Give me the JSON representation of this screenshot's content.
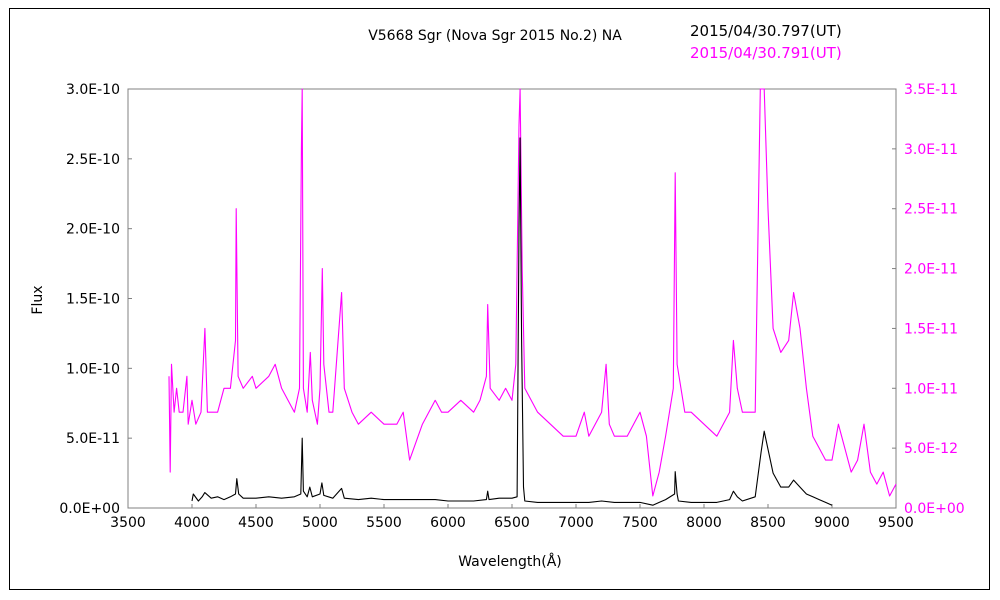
{
  "chart_data": {
    "type": "line",
    "title": "V5668 Sgr (Nova Sgr 2015 No.2)    NA",
    "xlabel": "Wavelength(Å)",
    "ylabel": "Flux",
    "xlim": [
      3500,
      9500
    ],
    "ylim_left": [
      0,
      3e-10
    ],
    "ylim_right": [
      0,
      3.5e-11
    ],
    "x_ticks": [
      "3500",
      "4000",
      "4500",
      "5000",
      "5500",
      "6000",
      "6500",
      "7000",
      "7500",
      "8000",
      "8500",
      "9000",
      "9500"
    ],
    "y_ticks_left": [
      "0.0E+00",
      "5.0E-11",
      "1.0E-10",
      "1.5E-10",
      "2.0E-10",
      "2.5E-10",
      "3.0E-10"
    ],
    "y_ticks_right": [
      "0.0E+00",
      "5.0E-12",
      "1.0E-11",
      "1.5E-11",
      "2.0E-11",
      "2.5E-11",
      "3.0E-11",
      "3.5E-11"
    ],
    "grid": false,
    "legend_position": "top-right",
    "series": [
      {
        "name": "2015/04/30.797(UT)",
        "axis": "left",
        "color": "#000000",
        "points": [
          [
            4000,
            5e-12
          ],
          [
            4010,
            1e-11
          ],
          [
            4050,
            5e-12
          ],
          [
            4080,
            8e-12
          ],
          [
            4100,
            1.1e-11
          ],
          [
            4150,
            7e-12
          ],
          [
            4200,
            8e-12
          ],
          [
            4250,
            6e-12
          ],
          [
            4300,
            8e-12
          ],
          [
            4340,
            1e-11
          ],
          [
            4350,
            2.1e-11
          ],
          [
            4365,
            1e-11
          ],
          [
            4400,
            7e-12
          ],
          [
            4500,
            7e-12
          ],
          [
            4600,
            8e-12
          ],
          [
            4700,
            7e-12
          ],
          [
            4800,
            8e-12
          ],
          [
            4850,
            1e-11
          ],
          [
            4861,
            5e-11
          ],
          [
            4870,
            1.2e-11
          ],
          [
            4900,
            8e-12
          ],
          [
            4920,
            1.5e-11
          ],
          [
            4940,
            8e-12
          ],
          [
            5000,
            1e-11
          ],
          [
            5015,
            1.8e-11
          ],
          [
            5030,
            9e-12
          ],
          [
            5100,
            7e-12
          ],
          [
            5169,
            1.4e-11
          ],
          [
            5190,
            7e-12
          ],
          [
            5300,
            6e-12
          ],
          [
            5400,
            7e-12
          ],
          [
            5500,
            6e-12
          ],
          [
            5600,
            6e-12
          ],
          [
            5700,
            6e-12
          ],
          [
            5800,
            6e-12
          ],
          [
            5900,
            6e-12
          ],
          [
            6000,
            5e-12
          ],
          [
            6100,
            5e-12
          ],
          [
            6200,
            5e-12
          ],
          [
            6300,
            6e-12
          ],
          [
            6310,
            1.2e-11
          ],
          [
            6320,
            6e-12
          ],
          [
            6400,
            7e-12
          ],
          [
            6500,
            7e-12
          ],
          [
            6540,
            8e-12
          ],
          [
            6555,
            2e-10
          ],
          [
            6563,
            2.65e-10
          ],
          [
            6575,
            1.2e-10
          ],
          [
            6590,
            1.5e-11
          ],
          [
            6600,
            5e-12
          ],
          [
            6700,
            4e-12
          ],
          [
            6800,
            4e-12
          ],
          [
            6900,
            4e-12
          ],
          [
            7000,
            4e-12
          ],
          [
            7100,
            4e-12
          ],
          [
            7200,
            5e-12
          ],
          [
            7300,
            4e-12
          ],
          [
            7400,
            4e-12
          ],
          [
            7500,
            4e-12
          ],
          [
            7600,
            2e-12
          ],
          [
            7650,
            4e-12
          ],
          [
            7700,
            6e-12
          ],
          [
            7770,
            1e-11
          ],
          [
            7775,
            2.6e-11
          ],
          [
            7790,
            1e-11
          ],
          [
            7800,
            5e-12
          ],
          [
            7900,
            4e-12
          ],
          [
            8000,
            4e-12
          ],
          [
            8100,
            4e-12
          ],
          [
            8200,
            6e-12
          ],
          [
            8230,
            1.2e-11
          ],
          [
            8260,
            8e-12
          ],
          [
            8300,
            5e-12
          ],
          [
            8400,
            8e-12
          ],
          [
            8446,
            4e-11
          ],
          [
            8470,
            5.5e-11
          ],
          [
            8500,
            4.2e-11
          ],
          [
            8540,
            2.5e-11
          ],
          [
            8600,
            1.5e-11
          ],
          [
            8662,
            1.5e-11
          ],
          [
            8700,
            2e-11
          ],
          [
            8750,
            1.5e-11
          ],
          [
            8800,
            1e-11
          ],
          [
            8850,
            8e-12
          ],
          [
            8900,
            6e-12
          ],
          [
            8950,
            4e-12
          ],
          [
            9000,
            2e-12
          ]
        ]
      },
      {
        "name": "2015/04/30.791(UT)",
        "axis": "right",
        "color": "#ff00ff",
        "points": [
          [
            3820,
            1.1e-11
          ],
          [
            3830,
            3e-12
          ],
          [
            3840,
            1.2e-11
          ],
          [
            3860,
            8e-12
          ],
          [
            3880,
            1e-11
          ],
          [
            3900,
            8e-12
          ],
          [
            3930,
            8e-12
          ],
          [
            3960,
            1.1e-11
          ],
          [
            3970,
            7e-12
          ],
          [
            4000,
            9e-12
          ],
          [
            4030,
            7e-12
          ],
          [
            4070,
            8e-12
          ],
          [
            4101,
            1.5e-11
          ],
          [
            4120,
            8e-12
          ],
          [
            4200,
            8e-12
          ],
          [
            4250,
            1e-11
          ],
          [
            4300,
            1e-11
          ],
          [
            4340,
            1.4e-11
          ],
          [
            4345,
            2.5e-11
          ],
          [
            4360,
            1.1e-11
          ],
          [
            4400,
            1e-11
          ],
          [
            4471,
            1.1e-11
          ],
          [
            4500,
            1e-11
          ],
          [
            4600,
            1.1e-11
          ],
          [
            4650,
            1.2e-11
          ],
          [
            4700,
            1e-11
          ],
          [
            4750,
            9e-12
          ],
          [
            4800,
            8e-12
          ],
          [
            4840,
            1e-11
          ],
          [
            4855,
            3e-11
          ],
          [
            4861,
            3.5e-11
          ],
          [
            4870,
            1e-11
          ],
          [
            4900,
            8e-12
          ],
          [
            4924,
            1.3e-11
          ],
          [
            4940,
            9e-12
          ],
          [
            4980,
            7e-12
          ],
          [
            5000,
            1e-11
          ],
          [
            5018,
            2e-11
          ],
          [
            5030,
            1.2e-11
          ],
          [
            5070,
            8e-12
          ],
          [
            5100,
            8e-12
          ],
          [
            5169,
            1.8e-11
          ],
          [
            5190,
            1e-11
          ],
          [
            5250,
            8e-12
          ],
          [
            5300,
            7e-12
          ],
          [
            5400,
            8e-12
          ],
          [
            5500,
            7e-12
          ],
          [
            5600,
            7e-12
          ],
          [
            5650,
            8e-12
          ],
          [
            5700,
            4e-12
          ],
          [
            5800,
            7e-12
          ],
          [
            5900,
            9e-12
          ],
          [
            5950,
            8e-12
          ],
          [
            6000,
            8e-12
          ],
          [
            6100,
            9e-12
          ],
          [
            6200,
            8e-12
          ],
          [
            6250,
            9e-12
          ],
          [
            6300,
            1.1e-11
          ],
          [
            6310,
            1.7e-11
          ],
          [
            6330,
            1e-11
          ],
          [
            6400,
            9e-12
          ],
          [
            6450,
            1e-11
          ],
          [
            6500,
            9e-12
          ],
          [
            6530,
            1.2e-11
          ],
          [
            6555,
            3.2e-11
          ],
          [
            6563,
            3.5e-11
          ],
          [
            6580,
            2e-11
          ],
          [
            6600,
            1e-11
          ],
          [
            6650,
            9e-12
          ],
          [
            6700,
            8e-12
          ],
          [
            6800,
            7e-12
          ],
          [
            6900,
            6e-12
          ],
          [
            7000,
            6e-12
          ],
          [
            7065,
            8e-12
          ],
          [
            7100,
            6e-12
          ],
          [
            7200,
            8e-12
          ],
          [
            7235,
            1.2e-11
          ],
          [
            7260,
            7e-12
          ],
          [
            7300,
            6e-12
          ],
          [
            7400,
            6e-12
          ],
          [
            7450,
            7e-12
          ],
          [
            7500,
            8e-12
          ],
          [
            7550,
            6e-12
          ],
          [
            7600,
            1e-12
          ],
          [
            7650,
            3e-12
          ],
          [
            7700,
            6e-12
          ],
          [
            7760,
            1e-11
          ],
          [
            7775,
            2.8e-11
          ],
          [
            7790,
            1.2e-11
          ],
          [
            7850,
            8e-12
          ],
          [
            7900,
            8e-12
          ],
          [
            8000,
            7e-12
          ],
          [
            8100,
            6e-12
          ],
          [
            8200,
            8e-12
          ],
          [
            8230,
            1.4e-11
          ],
          [
            8260,
            1e-11
          ],
          [
            8300,
            8e-12
          ],
          [
            8400,
            8e-12
          ],
          [
            8440,
            3.5e-11
          ],
          [
            8470,
            3.5e-11
          ],
          [
            8500,
            2.5e-11
          ],
          [
            8540,
            1.5e-11
          ],
          [
            8600,
            1.3e-11
          ],
          [
            8662,
            1.4e-11
          ],
          [
            8700,
            1.8e-11
          ],
          [
            8750,
            1.5e-11
          ],
          [
            8800,
            1e-11
          ],
          [
            8850,
            6e-12
          ],
          [
            8900,
            5e-12
          ],
          [
            8950,
            4e-12
          ],
          [
            9000,
            4e-12
          ],
          [
            9050,
            7e-12
          ],
          [
            9100,
            5e-12
          ],
          [
            9150,
            3e-12
          ],
          [
            9200,
            4e-12
          ],
          [
            9250,
            7e-12
          ],
          [
            9300,
            3e-12
          ],
          [
            9350,
            2e-12
          ],
          [
            9400,
            3e-12
          ],
          [
            9450,
            1e-12
          ],
          [
            9500,
            2e-12
          ]
        ]
      }
    ]
  }
}
